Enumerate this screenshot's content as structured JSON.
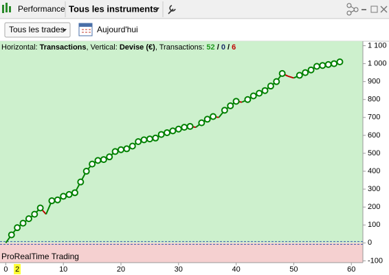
{
  "toolbar": {
    "tab": "Performance",
    "instrument": "Tous les instruments"
  },
  "filters": {
    "trades": "Tous les trades",
    "date": "Aujourd'hui"
  },
  "chart_data": {
    "type": "line",
    "info": {
      "horizontal": "Horizontal:",
      "horizontal_value": "Transactions",
      "comma": ",",
      "vertical": "Vertical:",
      "vertical_value": "Devise (€)",
      "count_label": "Transactions:",
      "wins": 52,
      "separator": "/",
      "neutral": 0,
      "losses": 6
    },
    "watermark": "ProRealTime Trading",
    "x": [
      0,
      1,
      2,
      3,
      4,
      5,
      6,
      7,
      8,
      9,
      10,
      11,
      12,
      13,
      14,
      15,
      16,
      17,
      18,
      19,
      20,
      21,
      22,
      23,
      24,
      25,
      26,
      27,
      28,
      29,
      30,
      31,
      32,
      33,
      34,
      35,
      36,
      37,
      38,
      39,
      40,
      41,
      42,
      43,
      44,
      45,
      46,
      47,
      48,
      49,
      50,
      51,
      52,
      53,
      54,
      55,
      56,
      57,
      58
    ],
    "values": [
      0,
      45,
      85,
      110,
      135,
      160,
      195,
      160,
      235,
      240,
      260,
      270,
      280,
      340,
      400,
      440,
      460,
      465,
      480,
      510,
      520,
      525,
      540,
      565,
      575,
      580,
      585,
      605,
      615,
      625,
      635,
      645,
      650,
      645,
      670,
      690,
      705,
      700,
      740,
      765,
      790,
      785,
      800,
      820,
      835,
      850,
      875,
      900,
      945,
      930,
      920,
      935,
      950,
      965,
      985,
      990,
      995,
      1000,
      1010
    ],
    "up_color": "#008000",
    "down_color": "#c00000",
    "xlim": [
      -1,
      62
    ],
    "ylim": [
      -110,
      1125
    ],
    "xticks": [
      0,
      10,
      20,
      30,
      40,
      50,
      60
    ],
    "yticks": [
      {
        "value": 1100,
        "label": "1 100"
      },
      {
        "value": 1000,
        "label": "1 000"
      },
      900,
      800,
      700,
      600,
      500,
      400,
      300,
      200,
      100,
      0,
      -100
    ],
    "x_highlight": 2
  }
}
